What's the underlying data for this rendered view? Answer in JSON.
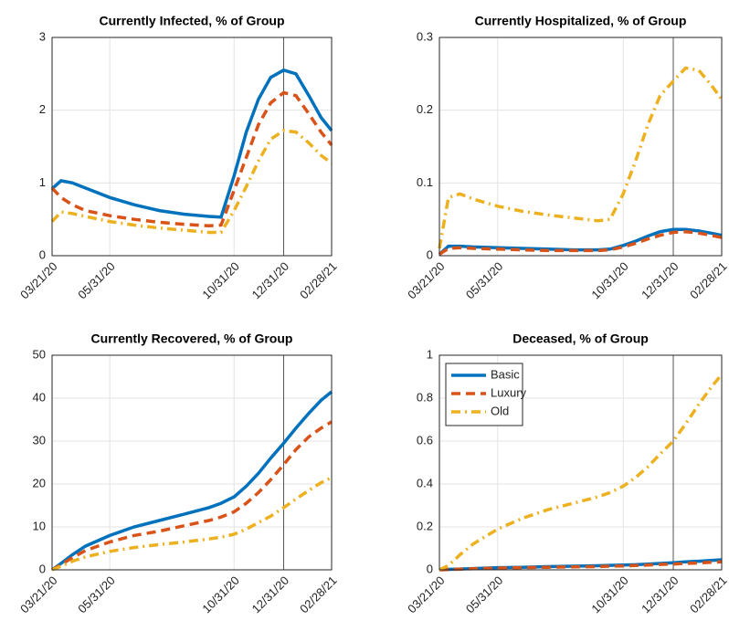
{
  "chart_data": [
    {
      "type": "line",
      "title": "Currently Infected, % of Group",
      "x": [
        "2020-03-21",
        "2020-04-01",
        "2020-04-15",
        "2020-05-01",
        "2020-05-31",
        "2020-06-30",
        "2020-07-31",
        "2020-08-31",
        "2020-09-30",
        "2020-10-15",
        "2020-10-31",
        "2020-11-15",
        "2020-11-30",
        "2020-12-15",
        "2020-12-31",
        "2021-01-15",
        "2021-01-31",
        "2021-02-15",
        "2021-02-28"
      ],
      "series": [
        {
          "color": "#0072bd",
          "dash": "solid",
          "values": [
            0.92,
            1.03,
            1.0,
            0.93,
            0.8,
            0.7,
            0.62,
            0.57,
            0.54,
            0.53,
            1.1,
            1.7,
            2.15,
            2.45,
            2.55,
            2.5,
            2.2,
            1.9,
            1.72
          ]
        },
        {
          "color": "#d95319",
          "dash": "dashed",
          "values": [
            0.93,
            0.8,
            0.7,
            0.62,
            0.55,
            0.5,
            0.46,
            0.43,
            0.41,
            0.42,
            0.9,
            1.35,
            1.8,
            2.1,
            2.24,
            2.2,
            1.95,
            1.7,
            1.52
          ]
        },
        {
          "color": "#edb120",
          "dash": "dashdot",
          "values": [
            0.47,
            0.6,
            0.58,
            0.54,
            0.47,
            0.42,
            0.38,
            0.35,
            0.32,
            0.32,
            0.62,
            0.95,
            1.3,
            1.6,
            1.72,
            1.7,
            1.55,
            1.38,
            1.27
          ]
        }
      ],
      "xlim": [
        "2020-03-21",
        "2021-02-28"
      ],
      "xticks": [
        {
          "value": "2020-03-21",
          "label": "03/21/20"
        },
        {
          "value": "2020-05-31",
          "label": "05/31/20"
        },
        {
          "value": "2020-10-31",
          "label": "10/31/20"
        },
        {
          "value": "2020-12-31",
          "label": "12/31/20"
        },
        {
          "value": "2021-02-28",
          "label": "02/28/21"
        }
      ],
      "ylim": [
        0,
        3
      ],
      "yticks": [
        0,
        1,
        2,
        3
      ],
      "grid": true,
      "vline": "2020-12-31"
    },
    {
      "type": "line",
      "title": "Currently Hospitalized, % of Group",
      "x": [
        "2020-03-21",
        "2020-04-01",
        "2020-04-15",
        "2020-05-01",
        "2020-05-31",
        "2020-06-30",
        "2020-07-31",
        "2020-08-31",
        "2020-09-30",
        "2020-10-15",
        "2020-10-31",
        "2020-11-15",
        "2020-11-30",
        "2020-12-15",
        "2020-12-31",
        "2021-01-15",
        "2021-01-31",
        "2021-02-15",
        "2021-02-28"
      ],
      "series": [
        {
          "color": "#0072bd",
          "dash": "solid",
          "values": [
            0.002,
            0.013,
            0.013,
            0.012,
            0.011,
            0.01,
            0.009,
            0.008,
            0.008,
            0.009,
            0.014,
            0.02,
            0.027,
            0.033,
            0.036,
            0.036,
            0.034,
            0.031,
            0.028
          ]
        },
        {
          "color": "#d95319",
          "dash": "dashed",
          "values": [
            0.002,
            0.01,
            0.011,
            0.01,
            0.009,
            0.008,
            0.007,
            0.007,
            0.007,
            0.008,
            0.012,
            0.017,
            0.023,
            0.028,
            0.032,
            0.033,
            0.031,
            0.028,
            0.025
          ]
        },
        {
          "color": "#edb120",
          "dash": "dashdot",
          "values": [
            0.01,
            0.08,
            0.085,
            0.078,
            0.068,
            0.061,
            0.056,
            0.052,
            0.048,
            0.05,
            0.085,
            0.13,
            0.18,
            0.22,
            0.24,
            0.258,
            0.255,
            0.235,
            0.215
          ]
        }
      ],
      "xlim": [
        "2020-03-21",
        "2021-02-28"
      ],
      "xticks": [
        {
          "value": "2020-03-21",
          "label": "03/21/20"
        },
        {
          "value": "2020-05-31",
          "label": "05/31/20"
        },
        {
          "value": "2020-10-31",
          "label": "10/31/20"
        },
        {
          "value": "2020-12-31",
          "label": "12/31/20"
        },
        {
          "value": "2021-02-28",
          "label": "02/28/21"
        }
      ],
      "ylim": [
        0,
        0.3
      ],
      "yticks": [
        0,
        0.1,
        0.2,
        0.3
      ],
      "grid": true,
      "vline": "2020-12-31"
    },
    {
      "type": "line",
      "title": "Currently Recovered, % of Group",
      "x": [
        "2020-03-21",
        "2020-04-01",
        "2020-04-15",
        "2020-05-01",
        "2020-05-31",
        "2020-06-30",
        "2020-07-31",
        "2020-08-31",
        "2020-09-30",
        "2020-10-15",
        "2020-10-31",
        "2020-11-15",
        "2020-11-30",
        "2020-12-15",
        "2020-12-31",
        "2021-01-15",
        "2021-01-31",
        "2021-02-15",
        "2021-02-28"
      ],
      "series": [
        {
          "color": "#0072bd",
          "dash": "solid",
          "values": [
            0,
            1.5,
            3.5,
            5.5,
            8,
            10,
            11.5,
            13,
            14.5,
            15.5,
            17,
            19.5,
            22.5,
            26,
            29.5,
            33,
            36.5,
            39.5,
            41.5
          ]
        },
        {
          "color": "#d95319",
          "dash": "dashed",
          "values": [
            0,
            1.2,
            2.8,
            4.5,
            6.5,
            8,
            9,
            10.3,
            11.5,
            12.3,
            13.5,
            15.5,
            18,
            21,
            24.5,
            28,
            31,
            33,
            34.5
          ]
        },
        {
          "color": "#edb120",
          "dash": "dashdot",
          "values": [
            0,
            0.8,
            2,
            3,
            4.3,
            5.2,
            5.9,
            6.5,
            7.2,
            7.6,
            8.3,
            9.5,
            11,
            12.5,
            14.5,
            16.5,
            18.5,
            20.3,
            21.5
          ]
        }
      ],
      "xlim": [
        "2020-03-21",
        "2021-02-28"
      ],
      "xticks": [
        {
          "value": "2020-03-21",
          "label": "03/21/20"
        },
        {
          "value": "2020-05-31",
          "label": "05/31/20"
        },
        {
          "value": "2020-10-31",
          "label": "10/31/20"
        },
        {
          "value": "2020-12-31",
          "label": "12/31/20"
        },
        {
          "value": "2021-02-28",
          "label": "02/28/21"
        }
      ],
      "ylim": [
        0,
        50
      ],
      "yticks": [
        0,
        10,
        20,
        30,
        40,
        50
      ],
      "grid": true,
      "vline": "2020-12-31"
    },
    {
      "type": "line",
      "title": "Deceased, % of Group",
      "x": [
        "2020-03-21",
        "2020-04-01",
        "2020-04-15",
        "2020-05-01",
        "2020-05-31",
        "2020-06-30",
        "2020-07-31",
        "2020-08-31",
        "2020-09-30",
        "2020-10-15",
        "2020-10-31",
        "2020-11-15",
        "2020-11-30",
        "2020-12-15",
        "2020-12-31",
        "2021-01-15",
        "2021-01-31",
        "2021-02-15",
        "2021-02-28"
      ],
      "series": [
        {
          "name": "Basic",
          "color": "#0072bd",
          "dash": "solid",
          "values": [
            0,
            0.002,
            0.004,
            0.006,
            0.01,
            0.012,
            0.015,
            0.017,
            0.019,
            0.021,
            0.022,
            0.024,
            0.027,
            0.03,
            0.033,
            0.037,
            0.04,
            0.044,
            0.047
          ]
        },
        {
          "name": "Luxury",
          "color": "#d95319",
          "dash": "dashed",
          "values": [
            0,
            0.001,
            0.003,
            0.005,
            0.008,
            0.01,
            0.012,
            0.014,
            0.015,
            0.017,
            0.018,
            0.02,
            0.022,
            0.025,
            0.027,
            0.03,
            0.032,
            0.035,
            0.037
          ]
        },
        {
          "name": "Old",
          "color": "#edb120",
          "dash": "dashdot",
          "values": [
            0,
            0.02,
            0.07,
            0.12,
            0.19,
            0.24,
            0.28,
            0.31,
            0.34,
            0.36,
            0.39,
            0.43,
            0.48,
            0.54,
            0.6,
            0.68,
            0.77,
            0.85,
            0.91
          ]
        }
      ],
      "xlim": [
        "2020-03-21",
        "2021-02-28"
      ],
      "xticks": [
        {
          "value": "2020-03-21",
          "label": "03/21/20"
        },
        {
          "value": "2020-05-31",
          "label": "05/31/20"
        },
        {
          "value": "2020-10-31",
          "label": "10/31/20"
        },
        {
          "value": "2020-12-31",
          "label": "12/31/20"
        },
        {
          "value": "2021-02-28",
          "label": "02/28/21"
        }
      ],
      "ylim": [
        0,
        1
      ],
      "yticks": [
        0,
        0.2,
        0.4,
        0.6,
        0.8,
        1
      ],
      "grid": true,
      "vline": "2020-12-31",
      "legend": "upper left"
    }
  ]
}
